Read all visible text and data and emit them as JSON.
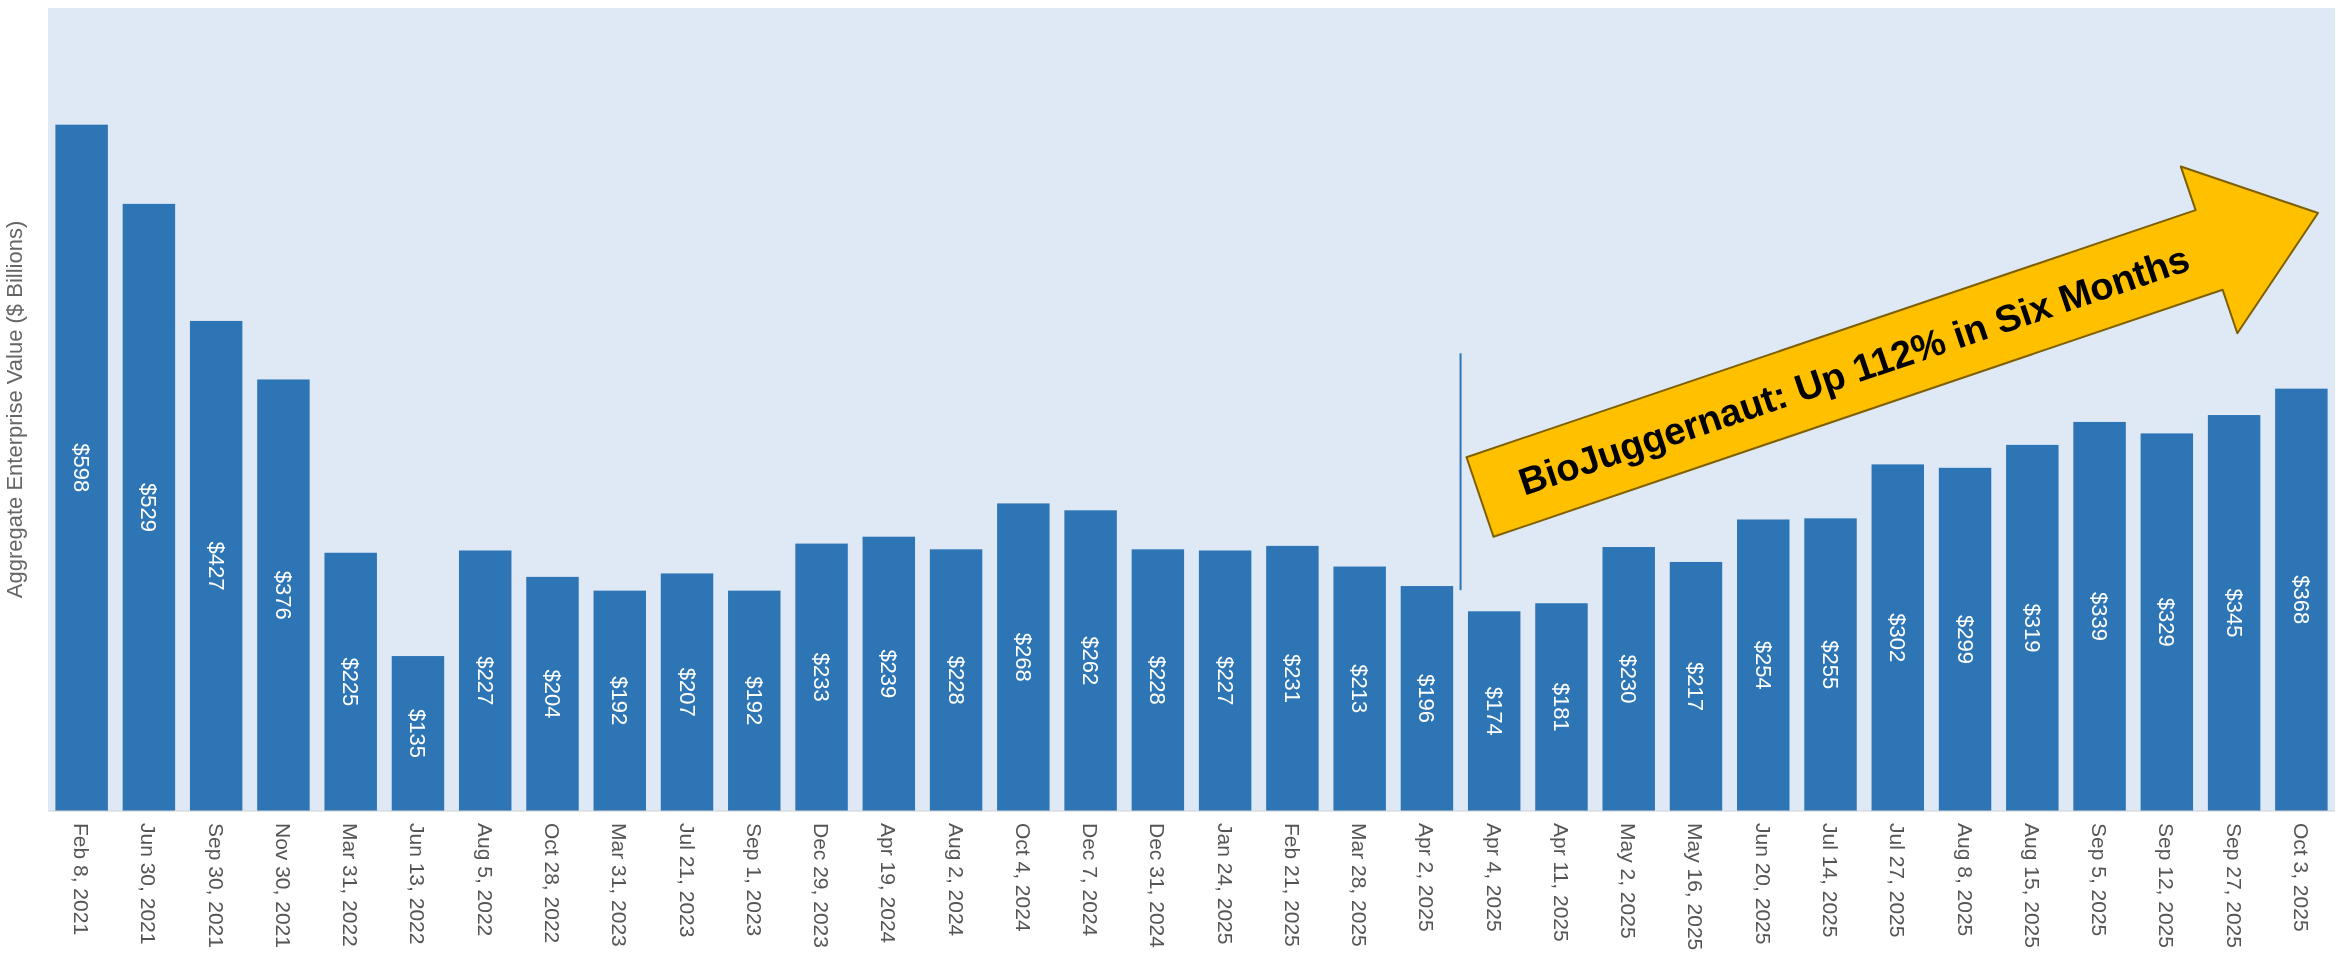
{
  "chart_data": {
    "type": "bar",
    "ylabel": "Aggregate Enterprise Value ($ Billions)",
    "categories": [
      "Feb 8, 2021",
      "Jun 30, 2021",
      "Sep 30, 2021",
      "Nov 30, 2021",
      "Mar 31, 2022",
      "Jun 13, 2022",
      "Aug 5, 2022",
      "Oct 28, 2022",
      "Mar 31, 2023",
      "Jul 21, 2023",
      "Sep 1, 2023",
      "Dec 29, 2023",
      "Apr 19, 2024",
      "Aug 2, 2024",
      "Oct 4, 2024",
      "Dec 7, 2024",
      "Dec 31, 2024",
      "Jan 24, 2025",
      "Feb 21, 2025",
      "Mar 28, 2025",
      "Apr 2, 2025",
      "Apr 4, 2025",
      "Apr 11, 2025",
      "May 2, 2025",
      "May 16, 2025",
      "Jun 20, 2025",
      "Jul 14, 2025",
      "Jul 27, 2025",
      "Aug 8, 2025",
      "Aug 15, 2025",
      "Sep 5, 2025",
      "Sep 12, 2025",
      "Sep 27, 2025",
      "Oct 3, 2025"
    ],
    "values": [
      598,
      529,
      427,
      376,
      225,
      135,
      227,
      204,
      192,
      207,
      192,
      233,
      239,
      228,
      268,
      262,
      228,
      227,
      231,
      213,
      196,
      174,
      181,
      230,
      217,
      254,
      255,
      302,
      299,
      319,
      339,
      329,
      345,
      368
    ],
    "value_labels": [
      "$598",
      "$529",
      "$427",
      "$376",
      "$225",
      "$135",
      "$227",
      "$204",
      "$192",
      "$207",
      "$192",
      "$233",
      "$239",
      "$228",
      "$268",
      "$262",
      "$228",
      "$227",
      "$231",
      "$213",
      "$196",
      "$174",
      "$181",
      "$230",
      "$217",
      "$254",
      "$255",
      "$302",
      "$299",
      "$319",
      "$339",
      "$329",
      "$345",
      "$368"
    ],
    "color": "#2e75b6",
    "ref_lines": [
      {
        "axis": "x",
        "value": "Apr 4, 2025",
        "color": "#2e75b6"
      }
    ],
    "annotations": [
      "BioJuggernaut: Up 112% in Six Months"
    ],
    "grid": false
  }
}
